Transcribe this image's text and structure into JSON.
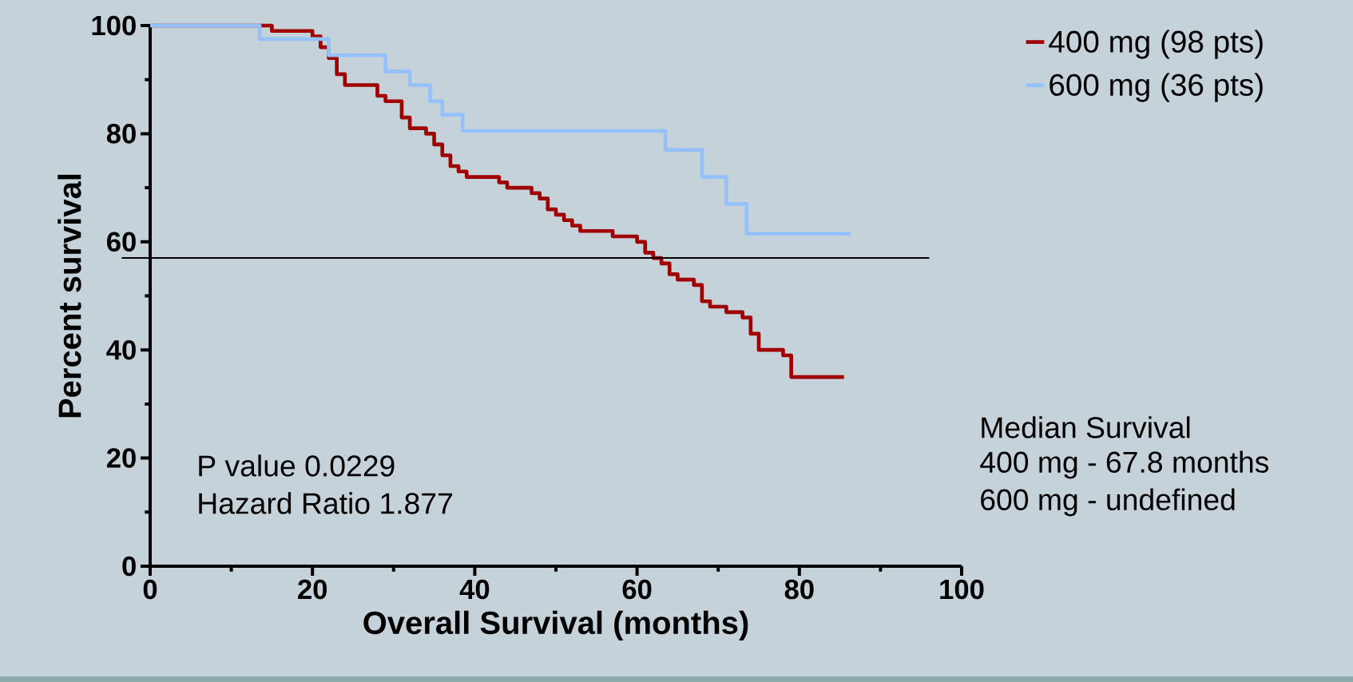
{
  "chart_data": {
    "type": "step",
    "xlabel": "Overall Survival (months)",
    "ylabel": "Percent survival",
    "series": [
      {
        "name": "400 mg     (98 pts)",
        "color": "#a00000",
        "x": [
          0,
          15,
          20,
          21,
          22,
          23,
          24,
          28,
          29,
          31,
          32,
          34,
          35,
          36,
          37,
          38,
          39,
          43,
          44,
          47,
          48,
          49,
          50,
          51,
          52,
          53,
          57,
          60,
          61,
          62,
          63,
          64,
          65,
          67,
          68,
          69,
          71,
          73,
          74,
          75,
          78,
          79,
          85.5
        ],
        "values": [
          100,
          99,
          98,
          96,
          94,
          91,
          89,
          87,
          86,
          83,
          81,
          80,
          78,
          76,
          74,
          73,
          72,
          71,
          70,
          69,
          68,
          66,
          65,
          64,
          63,
          62,
          61,
          60,
          58,
          57,
          56,
          54,
          53,
          52,
          49,
          48,
          47,
          46,
          43,
          40,
          39,
          35,
          35
        ]
      },
      {
        "name": "600 mg     (36 pts)",
        "color": "#94c1f9",
        "x": [
          0,
          13.5,
          22,
          29,
          32,
          34.5,
          36,
          38.5,
          63.5,
          68,
          71,
          73.5,
          86.3
        ],
        "values": [
          100,
          97.5,
          94.5,
          91.5,
          89,
          86,
          83.5,
          80.5,
          77,
          72,
          67,
          61.5,
          61.5
        ]
      }
    ],
    "xlim": [
      0,
      100
    ],
    "xticks": [
      0,
      20,
      40,
      60,
      80,
      100
    ],
    "ylim": [
      0,
      100
    ],
    "yticks": [
      0,
      20,
      40,
      60,
      80,
      100
    ],
    "ref_lines": [
      {
        "axis": "y",
        "value": 57,
        "color": "#000000"
      }
    ],
    "legend": "top right",
    "grid": false,
    "marker": "none",
    "line_style": "solid",
    "annotations": [
      "P value 0.0229",
      "Hazard Ratio 1.877",
      "Median Survival",
      "400 mg - 67.8 months",
      "600 mg -     undefined"
    ]
  }
}
